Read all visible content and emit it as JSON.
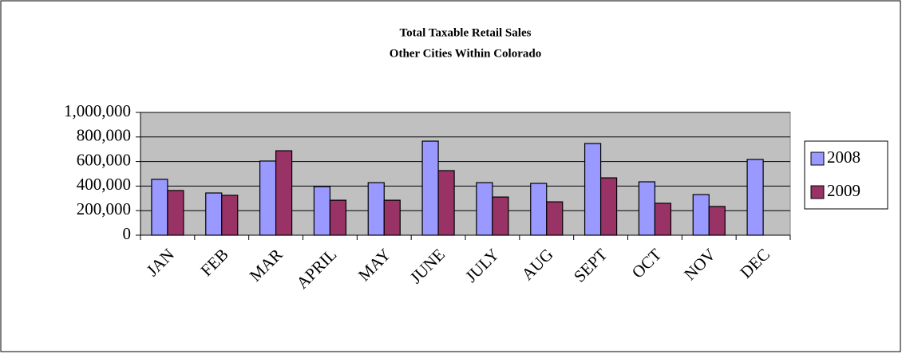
{
  "chart_data": {
    "type": "bar",
    "title": "Total Taxable Retail Sales",
    "subtitle": "Other Cities Within Colorado",
    "categories": [
      "JAN",
      "FEB",
      "MAR",
      "APRIL",
      "MAY",
      "JUNE",
      "JULY",
      "AUG",
      "SEPT",
      "OCT",
      "NOV",
      "DEC"
    ],
    "series": [
      {
        "name": "2008",
        "color": "#9999ff",
        "values": [
          455000,
          344000,
          604000,
          396000,
          428000,
          766000,
          428000,
          422000,
          747000,
          435000,
          331000,
          617000
        ]
      },
      {
        "name": "2009",
        "color": "#993366",
        "values": [
          364000,
          325000,
          688000,
          285000,
          285000,
          526000,
          311000,
          272000,
          467000,
          260000,
          234000,
          null
        ]
      }
    ],
    "ylim": [
      0,
      1000000
    ],
    "yticks": [
      0,
      {
        "value": 200000,
        "label": "200,000"
      },
      {
        "value": 400000,
        "label": "400,000"
      },
      {
        "value": 600000,
        "label": "600,000"
      },
      {
        "value": 800000,
        "label": "800,000"
      },
      {
        "value": 1000000,
        "label": "1,000,000"
      }
    ],
    "grid": true,
    "legend": "right"
  }
}
